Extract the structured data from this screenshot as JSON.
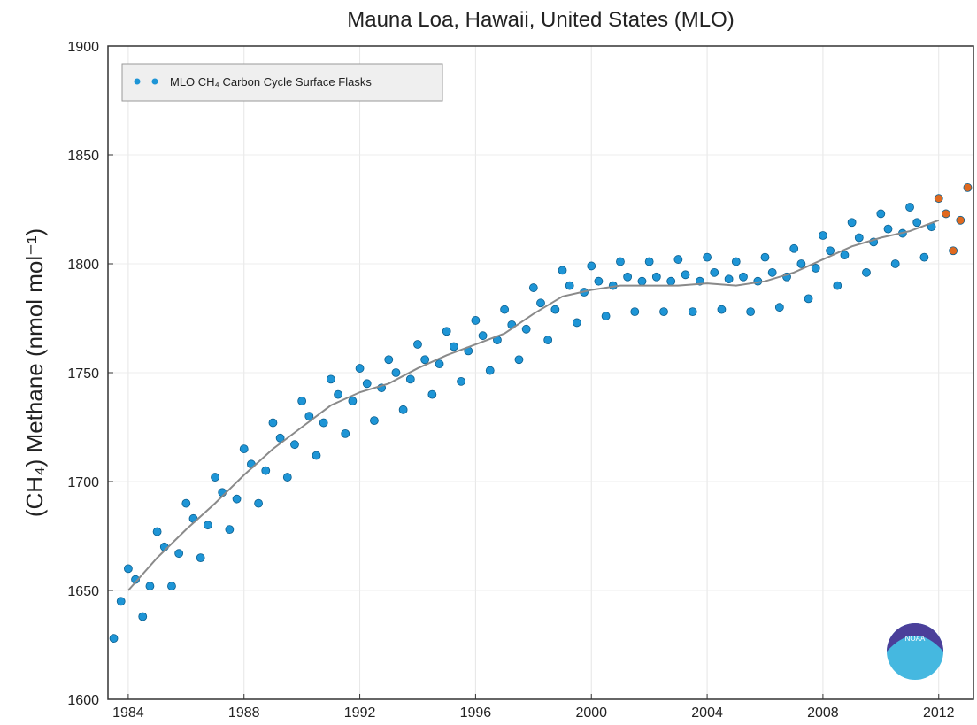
{
  "chart_data": {
    "type": "scatter",
    "title": "Mauna Loa, Hawaii, United States (MLO)",
    "y_label": "(CH₄) Methane (nmol mol⁻¹)",
    "legend_label": "MLO CH₄ Carbon Cycle Surface Flasks",
    "logo": "NOAA",
    "xlim": [
      1983.3,
      2013.2
    ],
    "ylim": [
      1600,
      1900
    ],
    "xticks": [
      1984,
      1988,
      1992,
      1996,
      2000,
      2004,
      2008,
      2012
    ],
    "yticks": [
      1600,
      1650,
      1700,
      1750,
      1800,
      1850,
      1900
    ],
    "grid": true,
    "legend": "upper left",
    "series": [
      {
        "name": "MLO CH₄ Carbon Cycle Surface Flasks",
        "color": "#1e95d6",
        "kind": "points",
        "x": [
          1983.5,
          1983.75,
          1984,
          1984.25,
          1984.5,
          1984.75,
          1985,
          1985.25,
          1985.5,
          1985.75,
          1986,
          1986.25,
          1986.5,
          1986.75,
          1987,
          1987.25,
          1987.5,
          1987.75,
          1988,
          1988.25,
          1988.5,
          1988.75,
          1989,
          1989.25,
          1989.5,
          1989.75,
          1990,
          1990.25,
          1990.5,
          1990.75,
          1991,
          1991.25,
          1991.5,
          1991.75,
          1992,
          1992.25,
          1992.5,
          1992.75,
          1993,
          1993.25,
          1993.5,
          1993.75,
          1994,
          1994.25,
          1994.5,
          1994.75,
          1995,
          1995.25,
          1995.5,
          1995.75,
          1996,
          1996.25,
          1996.5,
          1996.75,
          1997,
          1997.25,
          1997.5,
          1997.75,
          1998,
          1998.25,
          1998.5,
          1998.75,
          1999,
          1999.25,
          1999.5,
          1999.75,
          2000,
          2000.25,
          2000.5,
          2000.75,
          2001,
          2001.25,
          2001.5,
          2001.75,
          2002,
          2002.25,
          2002.5,
          2002.75,
          2003,
          2003.25,
          2003.5,
          2003.75,
          2004,
          2004.25,
          2004.5,
          2004.75,
          2005,
          2005.25,
          2005.5,
          2005.75,
          2006,
          2006.25,
          2006.5,
          2006.75,
          2007,
          2007.25,
          2007.5,
          2007.75,
          2008,
          2008.25,
          2008.5,
          2008.75,
          2009,
          2009.25,
          2009.5,
          2009.75,
          2010,
          2010.25,
          2010.5,
          2010.75,
          2011,
          2011.25,
          2011.5,
          2011.75
        ],
        "values": [
          1628,
          1645,
          1660,
          1655,
          1638,
          1652,
          1677,
          1670,
          1652,
          1667,
          1690,
          1683,
          1665,
          1680,
          1702,
          1695,
          1678,
          1692,
          1715,
          1708,
          1690,
          1705,
          1727,
          1720,
          1702,
          1717,
          1737,
          1730,
          1712,
          1727,
          1747,
          1740,
          1722,
          1737,
          1752,
          1745,
          1728,
          1743,
          1756,
          1750,
          1733,
          1747,
          1763,
          1756,
          1740,
          1754,
          1769,
          1762,
          1746,
          1760,
          1774,
          1767,
          1751,
          1765,
          1779,
          1772,
          1756,
          1770,
          1789,
          1782,
          1765,
          1779,
          1797,
          1790,
          1773,
          1787,
          1799,
          1792,
          1776,
          1790,
          1801,
          1794,
          1778,
          1792,
          1801,
          1794,
          1778,
          1792,
          1802,
          1795,
          1778,
          1792,
          1803,
          1796,
          1779,
          1793,
          1801,
          1794,
          1778,
          1792,
          1803,
          1796,
          1780,
          1794,
          1807,
          1800,
          1784,
          1798,
          1813,
          1806,
          1790,
          1804,
          1819,
          1812,
          1796,
          1810,
          1823,
          1816,
          1800,
          1814,
          1826,
          1819,
          1803,
          1817
        ]
      },
      {
        "name": "",
        "color": "#e0691f",
        "kind": "points",
        "x": [
          2012,
          2012.25,
          2012.5,
          2012.75,
          2013
        ],
        "values": [
          1830,
          1823,
          1806,
          1820,
          1835
        ]
      },
      {
        "name": "",
        "color": "#8a8a8a",
        "kind": "line",
        "x": [
          1984,
          1985,
          1986,
          1987,
          1988,
          1989,
          1990,
          1991,
          1992,
          1993,
          1994,
          1995,
          1996,
          1997,
          1998,
          1999,
          2000,
          2001,
          2002,
          2003,
          2004,
          2005,
          2006,
          2007,
          2008,
          2009,
          2010,
          2011,
          2012
        ],
        "values": [
          1650,
          1665,
          1678,
          1690,
          1703,
          1715,
          1725,
          1735,
          1741,
          1745,
          1752,
          1758,
          1763,
          1768,
          1777,
          1785,
          1788,
          1790,
          1790,
          1790,
          1791,
          1790,
          1792,
          1796,
          1802,
          1808,
          1812,
          1815,
          1820
        ]
      }
    ]
  }
}
